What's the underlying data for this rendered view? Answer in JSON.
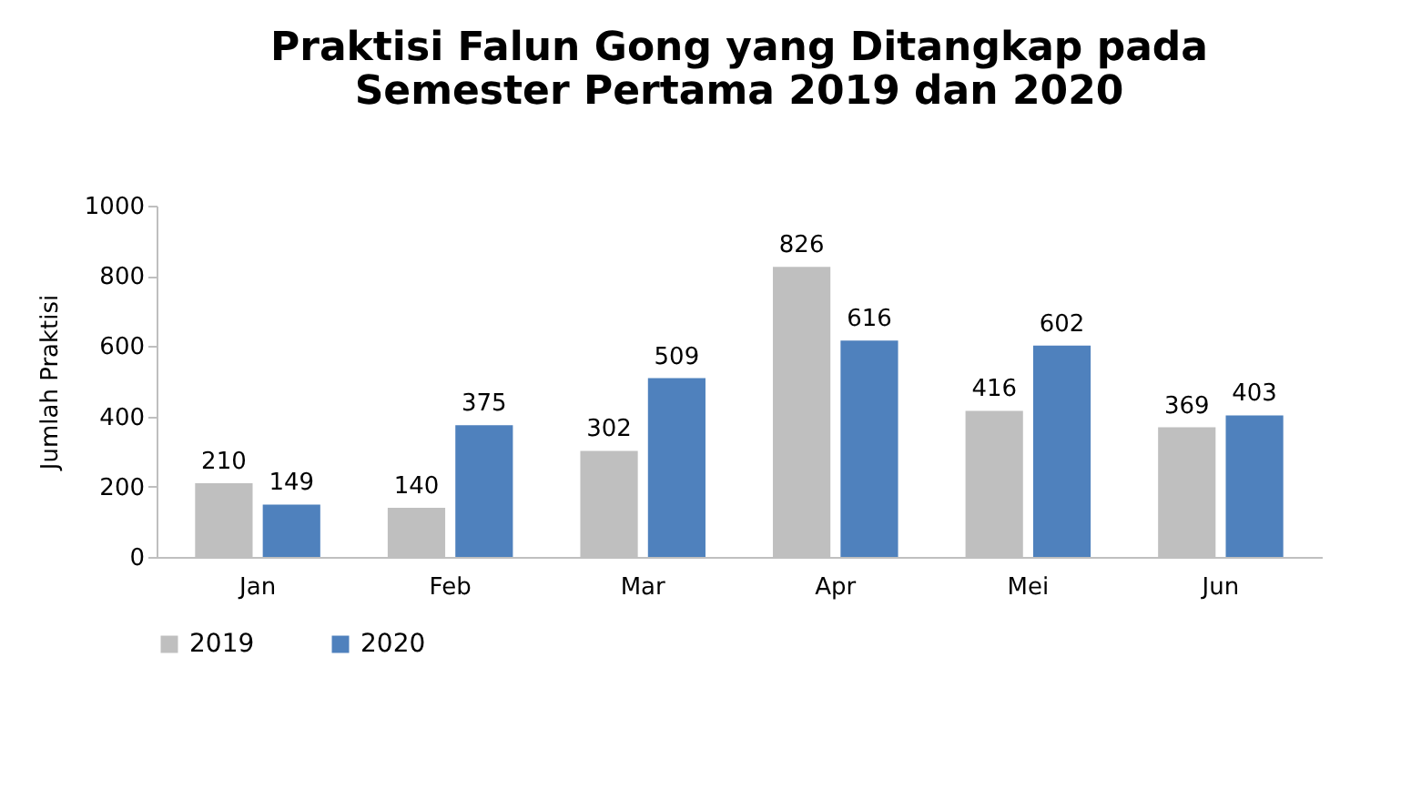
{
  "chart_data": {
    "type": "bar",
    "title": "Praktisi Falun Gong yang Ditangkap pada\nSemester Pertama 2019 dan 2020",
    "ylabel": "Jumlah Praktisi",
    "categories": [
      "Jan",
      "Feb",
      "Mar",
      "Apr",
      "Mei",
      "Jun"
    ],
    "series": [
      {
        "name": "2019",
        "color": "#bfbfbf",
        "values": [
          210,
          140,
          302,
          826,
          416,
          369
        ]
      },
      {
        "name": "2020",
        "color": "#4f81bd",
        "values": [
          149,
          375,
          509,
          616,
          602,
          403
        ]
      }
    ],
    "ylim": [
      0,
      1000
    ],
    "yticks": [
      0,
      200,
      400,
      600,
      800,
      1000
    ],
    "data_labels": true,
    "grid": false,
    "legend": "bottom"
  }
}
